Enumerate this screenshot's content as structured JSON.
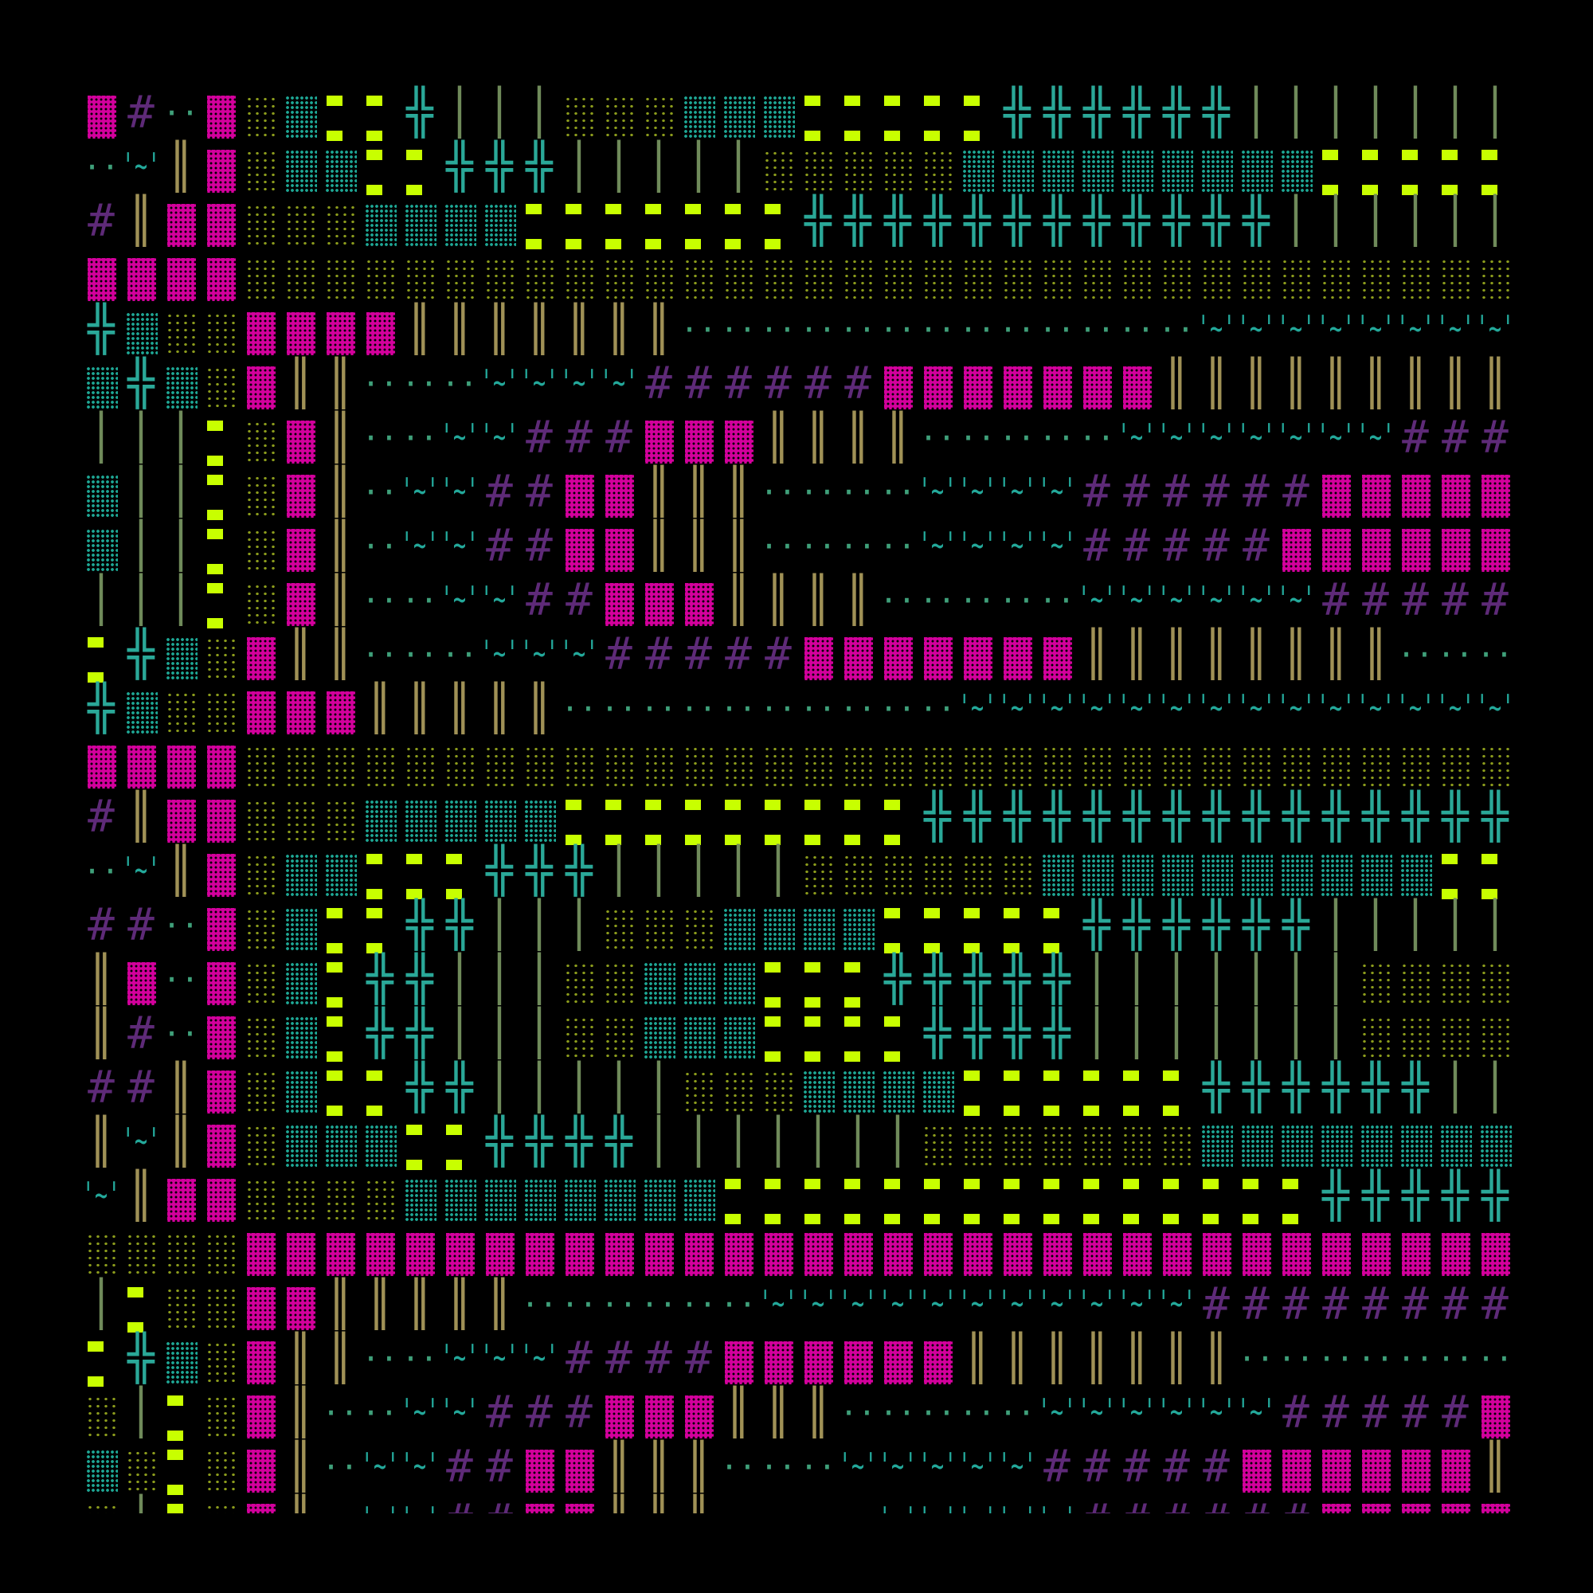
{
  "palette": {
    "background": "#000000",
    "pink_block": "#d3009c",
    "olive_dots": "#8a9a1c",
    "teal_dots": "#1ea896",
    "lime_block": "#c8ff00",
    "cross": "#2aa898",
    "bar": "#6f8a5a",
    "double_bar": "#a09156",
    "dots": "#3fa07a",
    "tilde": "#23a89a",
    "hash": "#5e2a78"
  },
  "glyphs": {
    "X": "╬",
    "l": "│",
    "H": "║",
    "d": "··",
    "w": "'~'",
    "h": "#"
  },
  "rows": [
    "PhdPotYYXllloootttYYYYYXXXXXXlllllll",
    "dwHPottYYXXXllllloooootttttttttYYYYYY",
    "hHPPooottttYYYYYYYXXXXXXXXXXXXllllll",
    "PPPPoooooooooooooooooooooooooooooooo",
    "XtooPPPPHHHHHHHdddddddddddddwwwwwwww",
    "tXtoPHHdddwwwwhhhhhhPPPPPPPHHHHHHHHH",
    "lllYoPHddwwhhhPPPHHHHdddddwwwwwwwhhh",
    "tllYoPHdwwhhPPHHHddddwwwwhhhhhhPPPPP",
    "tllYoPHdwwhhPPHHHddddwwwwhhhhhPPPPPP",
    "lllYoPHddwwhhPPPHHHHdddddwwwwwwhhhhh",
    "YXtoPHHdddwwwhhhhhPPPPPPPHHHHHHHHddd",
    "XtooPPPHHHHHddddddddddwwwwwwwwwwwwww",
    "PPPPoooooooooooooooooooooooooooooooo",
    "hHPPoootttttYYYYYYYYYXXXXXXXXXXXXXXX",
    "dwHPottYYYXXXllllloooooottttttttttYY",
    "hhdPotYYXXlllooottttYYYYYXXXXXXlllll",
    "HPdPotYXXlllootttYYYXXXXXllllllloooo",
    "HhdPotYXXlllootttYYYYXXXXllllllloooo",
    "hhHPotYYXXlllllooottttYYYYYYXXXXXXll",
    "HwHPotttYYXXXXlllllllooooooottttttttt",
    "wHPPoooottttttttYYYYYYYYYYYYYYYXXXXX",
    "ooooPPPPPPPPPPPPPPPPPPPPPPPPPPPPPPPP",
    "lYooPPHHHHHddddddwwwwwwwwwwwhhhhhhhh",
    "YXtoPHHddwwwhhhhPPPPPPHHHHHHHddddddd",
    "olYoPHddwwhhhPPPHHHdddddwwwwwwhhhhhP",
    "toYoPHdwwhhPPHHHdddwwwwwhhhhhPPPPPPH",
    "olYoPHdwwhhPPHHHddddwwwwwhhhhhhPPPPP"
  ]
}
